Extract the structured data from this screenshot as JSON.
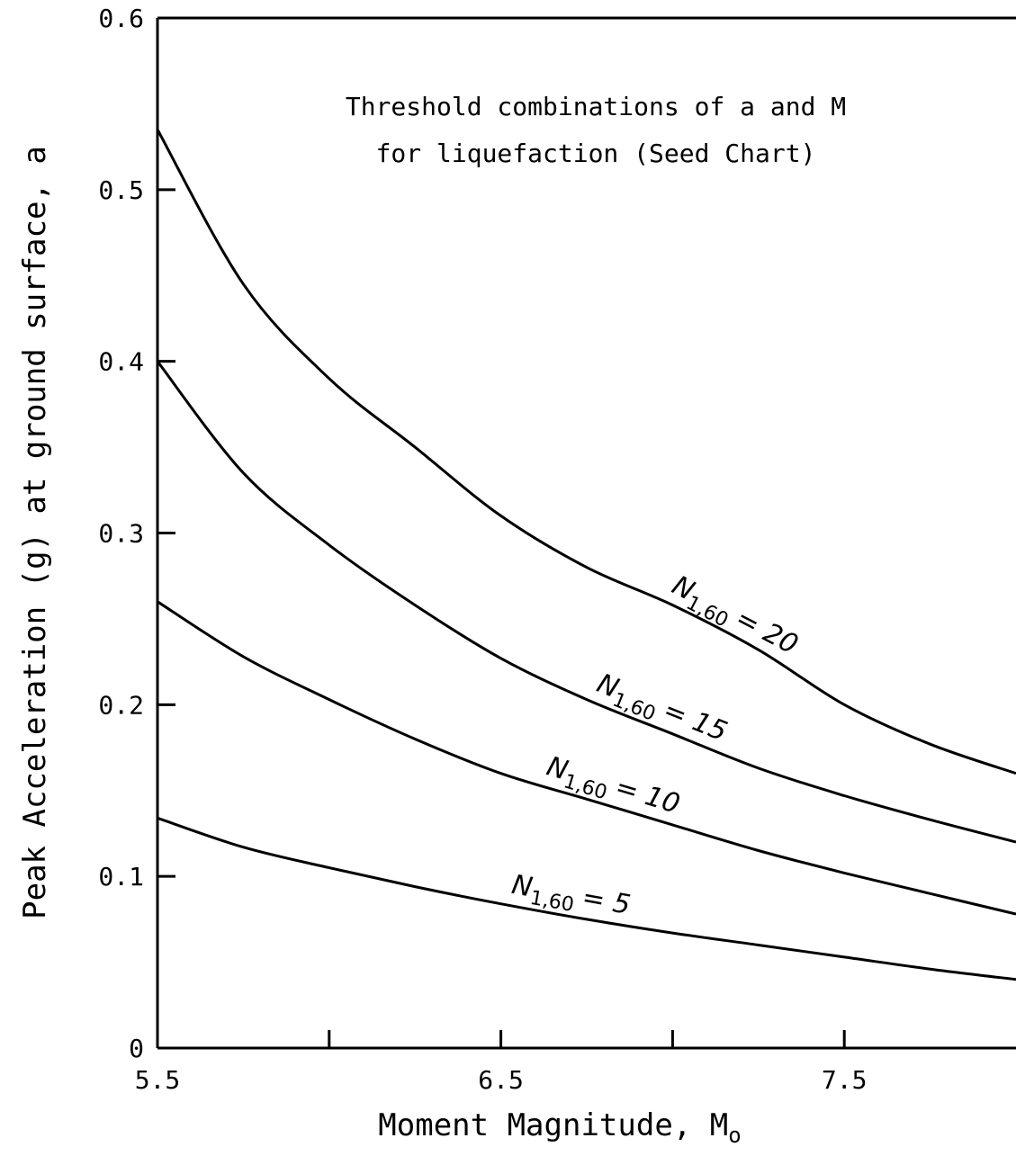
{
  "chart_data": {
    "type": "line",
    "title": "Threshold combinations of a and M",
    "subtitle": "for liquefaction (Seed Chart)",
    "xlabel": "Moment Magnitude, M",
    "xlabel_sub": "o",
    "ylabel": "Peak Acceleration (g) at ground surface, a",
    "xlim": [
      5.5,
      8.0
    ],
    "ylim": [
      0,
      0.6
    ],
    "x_ticks": [
      5.5,
      6.0,
      6.5,
      7.0,
      7.5
    ],
    "x_tick_labels": [
      "5.5",
      "",
      "6.5",
      "",
      "7.5"
    ],
    "y_ticks": [
      0,
      0.1,
      0.2,
      0.3,
      0.4,
      0.5,
      0.6
    ],
    "y_tick_labels": [
      "0",
      "0.1",
      "0.2",
      "0.3",
      "0.4",
      "0.5",
      "0.6"
    ],
    "grid": false,
    "x": [
      5.5,
      5.75,
      6.0,
      6.25,
      6.5,
      6.75,
      7.0,
      7.25,
      7.5,
      7.75,
      8.0
    ],
    "series": [
      {
        "name": "N1,60 = 20",
        "label_main": "N",
        "label_sub": "1,60",
        "label_eq": "= 20",
        "values": [
          0.535,
          0.445,
          0.39,
          0.35,
          0.31,
          0.28,
          0.258,
          0.232,
          0.2,
          0.177,
          0.16
        ]
      },
      {
        "name": "N1,60 = 15",
        "label_main": "N",
        "label_sub": "1,60",
        "label_eq": "= 15",
        "values": [
          0.4,
          0.335,
          0.293,
          0.258,
          0.227,
          0.203,
          0.183,
          0.163,
          0.147,
          0.133,
          0.12
        ]
      },
      {
        "name": "N1,60 = 10",
        "label_main": "N",
        "label_sub": "1,60",
        "label_eq": "= 10",
        "values": [
          0.26,
          0.228,
          0.203,
          0.18,
          0.16,
          0.145,
          0.13,
          0.115,
          0.102,
          0.09,
          0.078
        ]
      },
      {
        "name": "N1,60 = 5",
        "label_main": "N",
        "label_sub": "1,60",
        "label_eq": "= 5",
        "values": [
          0.134,
          0.117,
          0.105,
          0.094,
          0.084,
          0.075,
          0.067,
          0.06,
          0.053,
          0.046,
          0.04
        ]
      }
    ]
  }
}
